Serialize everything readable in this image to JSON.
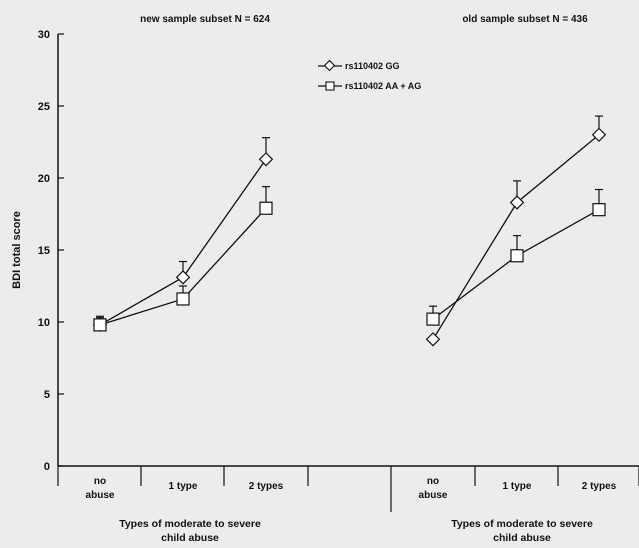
{
  "chart_data": {
    "type": "line",
    "ylabel": "BDI total score",
    "ylim": [
      0,
      30
    ],
    "yticks": [
      0,
      5,
      10,
      15,
      20,
      25,
      30
    ],
    "legend": {
      "placement": "top-center",
      "entries": [
        {
          "label": "rs110402 GG",
          "marker": "diamond"
        },
        {
          "label": "rs110402 AA + AG",
          "marker": "square"
        }
      ]
    },
    "panels": [
      {
        "title": "new sample subset N = 624",
        "xlabel_line1": "Types of moderate to severe",
        "xlabel_line2": "child abuse",
        "categories": [
          {
            "line1": "no",
            "line2": "abuse"
          },
          {
            "line1": "1 type",
            "line2": ""
          },
          {
            "line1": "2 types",
            "line2": ""
          }
        ],
        "series": [
          {
            "name": "rs110402 GG",
            "marker": "diamond",
            "values": [
              9.8,
              13.1,
              21.3
            ],
            "errors": [
              0.6,
              1.1,
              1.5
            ]
          },
          {
            "name": "rs110402 AA + AG",
            "marker": "square",
            "values": [
              9.8,
              11.6,
              17.9
            ],
            "errors": [
              0.5,
              0.9,
              1.5
            ]
          }
        ]
      },
      {
        "title": "old sample subset N = 436",
        "xlabel_line1": "Types of moderate to severe",
        "xlabel_line2": "child abuse",
        "categories": [
          {
            "line1": "no",
            "line2": "abuse"
          },
          {
            "line1": "1 type",
            "line2": ""
          },
          {
            "line1": "2 types",
            "line2": ""
          }
        ],
        "series": [
          {
            "name": "rs110402 GG",
            "marker": "diamond",
            "values": [
              8.8,
              18.3,
              23.0
            ],
            "errors": [
              0.0,
              1.5,
              1.3
            ]
          },
          {
            "name": "rs110402 AA + AG",
            "marker": "square",
            "values": [
              10.2,
              14.6,
              17.8
            ],
            "errors": [
              0.9,
              1.4,
              1.4
            ]
          }
        ]
      }
    ]
  }
}
